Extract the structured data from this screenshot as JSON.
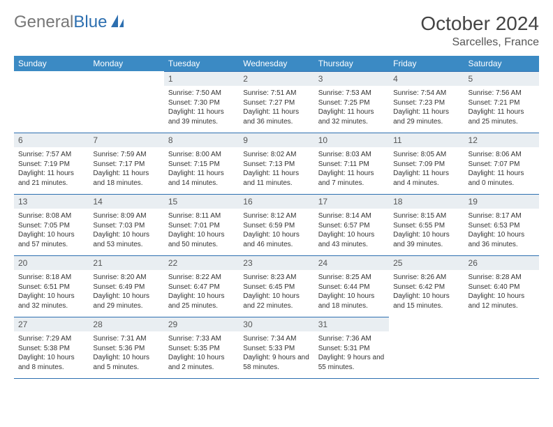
{
  "logo": {
    "text_gray": "General",
    "text_blue": "Blue"
  },
  "header": {
    "month": "October 2024",
    "location": "Sarcelles, France"
  },
  "weekdays": [
    "Sunday",
    "Monday",
    "Tuesday",
    "Wednesday",
    "Thursday",
    "Friday",
    "Saturday"
  ],
  "colors": {
    "header_bg": "#3b8ac4",
    "day_bg": "#e9eef2",
    "rule": "#2d6fb0"
  },
  "weeks": [
    [
      {
        "empty": true
      },
      {
        "empty": true
      },
      {
        "n": "1",
        "sr": "7:50 AM",
        "ss": "7:30 PM",
        "dl": "11 hours and 39 minutes."
      },
      {
        "n": "2",
        "sr": "7:51 AM",
        "ss": "7:27 PM",
        "dl": "11 hours and 36 minutes."
      },
      {
        "n": "3",
        "sr": "7:53 AM",
        "ss": "7:25 PM",
        "dl": "11 hours and 32 minutes."
      },
      {
        "n": "4",
        "sr": "7:54 AM",
        "ss": "7:23 PM",
        "dl": "11 hours and 29 minutes."
      },
      {
        "n": "5",
        "sr": "7:56 AM",
        "ss": "7:21 PM",
        "dl": "11 hours and 25 minutes."
      }
    ],
    [
      {
        "n": "6",
        "sr": "7:57 AM",
        "ss": "7:19 PM",
        "dl": "11 hours and 21 minutes."
      },
      {
        "n": "7",
        "sr": "7:59 AM",
        "ss": "7:17 PM",
        "dl": "11 hours and 18 minutes."
      },
      {
        "n": "8",
        "sr": "8:00 AM",
        "ss": "7:15 PM",
        "dl": "11 hours and 14 minutes."
      },
      {
        "n": "9",
        "sr": "8:02 AM",
        "ss": "7:13 PM",
        "dl": "11 hours and 11 minutes."
      },
      {
        "n": "10",
        "sr": "8:03 AM",
        "ss": "7:11 PM",
        "dl": "11 hours and 7 minutes."
      },
      {
        "n": "11",
        "sr": "8:05 AM",
        "ss": "7:09 PM",
        "dl": "11 hours and 4 minutes."
      },
      {
        "n": "12",
        "sr": "8:06 AM",
        "ss": "7:07 PM",
        "dl": "11 hours and 0 minutes."
      }
    ],
    [
      {
        "n": "13",
        "sr": "8:08 AM",
        "ss": "7:05 PM",
        "dl": "10 hours and 57 minutes."
      },
      {
        "n": "14",
        "sr": "8:09 AM",
        "ss": "7:03 PM",
        "dl": "10 hours and 53 minutes."
      },
      {
        "n": "15",
        "sr": "8:11 AM",
        "ss": "7:01 PM",
        "dl": "10 hours and 50 minutes."
      },
      {
        "n": "16",
        "sr": "8:12 AM",
        "ss": "6:59 PM",
        "dl": "10 hours and 46 minutes."
      },
      {
        "n": "17",
        "sr": "8:14 AM",
        "ss": "6:57 PM",
        "dl": "10 hours and 43 minutes."
      },
      {
        "n": "18",
        "sr": "8:15 AM",
        "ss": "6:55 PM",
        "dl": "10 hours and 39 minutes."
      },
      {
        "n": "19",
        "sr": "8:17 AM",
        "ss": "6:53 PM",
        "dl": "10 hours and 36 minutes."
      }
    ],
    [
      {
        "n": "20",
        "sr": "8:18 AM",
        "ss": "6:51 PM",
        "dl": "10 hours and 32 minutes."
      },
      {
        "n": "21",
        "sr": "8:20 AM",
        "ss": "6:49 PM",
        "dl": "10 hours and 29 minutes."
      },
      {
        "n": "22",
        "sr": "8:22 AM",
        "ss": "6:47 PM",
        "dl": "10 hours and 25 minutes."
      },
      {
        "n": "23",
        "sr": "8:23 AM",
        "ss": "6:45 PM",
        "dl": "10 hours and 22 minutes."
      },
      {
        "n": "24",
        "sr": "8:25 AM",
        "ss": "6:44 PM",
        "dl": "10 hours and 18 minutes."
      },
      {
        "n": "25",
        "sr": "8:26 AM",
        "ss": "6:42 PM",
        "dl": "10 hours and 15 minutes."
      },
      {
        "n": "26",
        "sr": "8:28 AM",
        "ss": "6:40 PM",
        "dl": "10 hours and 12 minutes."
      }
    ],
    [
      {
        "n": "27",
        "sr": "7:29 AM",
        "ss": "5:38 PM",
        "dl": "10 hours and 8 minutes."
      },
      {
        "n": "28",
        "sr": "7:31 AM",
        "ss": "5:36 PM",
        "dl": "10 hours and 5 minutes."
      },
      {
        "n": "29",
        "sr": "7:33 AM",
        "ss": "5:35 PM",
        "dl": "10 hours and 2 minutes."
      },
      {
        "n": "30",
        "sr": "7:34 AM",
        "ss": "5:33 PM",
        "dl": "9 hours and 58 minutes."
      },
      {
        "n": "31",
        "sr": "7:36 AM",
        "ss": "5:31 PM",
        "dl": "9 hours and 55 minutes."
      },
      {
        "empty": true
      },
      {
        "empty": true
      }
    ]
  ],
  "labels": {
    "sunrise": "Sunrise:",
    "sunset": "Sunset:",
    "daylight": "Daylight:"
  }
}
